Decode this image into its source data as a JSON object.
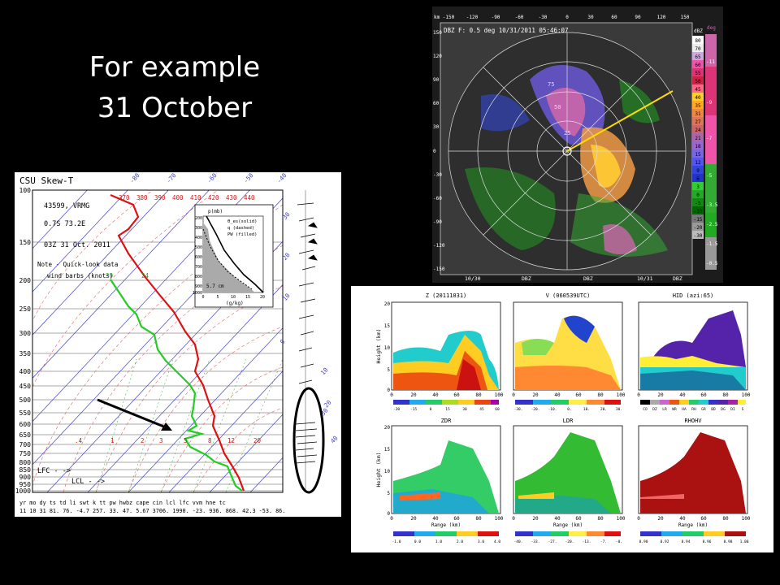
{
  "slide": {
    "title_line1": "For example",
    "title_line2": "31 October"
  },
  "skewt": {
    "header": "CSU Skew-T",
    "station": "43599, VRMG",
    "location": "0.7S   73.2E",
    "time": "03Z 31 Oct. 2011",
    "note_line1": "Note - Quick-look data",
    "note_line2": "wind barbs (knots)",
    "note_30": "30",
    "note_24": "24",
    "pressure_levels": [
      "100",
      "150",
      "200",
      "250",
      "300",
      "350",
      "400",
      "450",
      "500",
      "550",
      "600",
      "650",
      "700",
      "750",
      "800",
      "850",
      "900",
      "950",
      "1000"
    ],
    "top_temps": [
      "370",
      "380",
      "390",
      "400",
      "410",
      "420",
      "430",
      "440"
    ],
    "skew_temps": [
      "-80",
      "-70",
      "-60",
      "-50",
      "-40",
      "-30",
      "-20",
      "-10",
      "0",
      "10",
      "20",
      "30",
      "40"
    ],
    "bottom_temps": [
      ".4",
      "1",
      "2",
      "3",
      "5",
      "8",
      "12",
      "20"
    ],
    "lfc_label": "LFC - ->",
    "lcl_label": "LCL - ->",
    "footer_header": "yr mo dy ts  td  li  swt  k   tt  pw  hwbz  cape  cin  lcl  lfc  vvm  hne  tc",
    "footer_values": "11 10 31 81.  76. -4.7 257.  33.  47. 5.67 3706. 1990.  -23.  936.  868.  42.3 -53.  86.",
    "inset": {
      "ylabel": "p(mb)",
      "legend1": "θ_es(solid)",
      "legend2": "q (dashed)",
      "legend3": "PW (filled)",
      "pw_value": "5.7 cm",
      "xlabel": "(g/kg)",
      "y_ticks": [
        "200",
        "300",
        "400",
        "500",
        "600",
        "700",
        "800",
        "900",
        "1000"
      ],
      "x_ticks": [
        "0",
        "5",
        "10",
        "15",
        "20"
      ]
    }
  },
  "radar": {
    "header": "DBZ F: 0.5 deg 10/31/2011 05:46:07",
    "x_ticks": [
      "-150",
      "-120",
      "-90",
      "-60",
      "-30",
      "0",
      "30",
      "60",
      "90",
      "120",
      "150"
    ],
    "y_ticks": [
      "150",
      "120",
      "90",
      "60",
      "30",
      "0",
      "-30",
      "-60",
      "-90",
      "-120",
      "-150"
    ],
    "km_label": "km",
    "range_labels": [
      "25",
      "50",
      "75"
    ],
    "colorbar_title": "dBZ",
    "colorbar_levels": [
      "80",
      "70",
      "65",
      "60",
      "55",
      "50",
      "45",
      "40",
      "35",
      "31",
      "27",
      "24",
      "21",
      "18",
      "15",
      "12",
      "9",
      "6",
      "3",
      "0",
      "-5",
      "-10",
      "-15",
      "-20",
      "-30"
    ],
    "deg_title": "deg",
    "deg_levels": [
      "-11",
      "-9",
      "-7",
      "-5",
      "-3.5",
      "-2.5",
      "-1.5",
      "-0.5"
    ],
    "footer_left": "10/30",
    "footer_mid1": "DBZ",
    "footer_mid2": "DBZ",
    "footer_right": "10/31",
    "footer_right2": "DBZ"
  },
  "cross": {
    "titles": [
      "Z (20111031)",
      "V (060539UTC)",
      "HID (azi:65)",
      "ZDR",
      "LDR",
      "RHOHV"
    ],
    "ylabel": "Height (km)",
    "xlabel": "Range (km)",
    "y_ticks": [
      "20",
      "15",
      "10",
      "5",
      "0"
    ],
    "x_ticks": [
      "0",
      "20",
      "40",
      "60",
      "80",
      "100"
    ],
    "cb_z": [
      "-30",
      "-15",
      "0",
      "15",
      "30",
      "45",
      "60"
    ],
    "cb_v": [
      "-30.",
      "-20.",
      "-10.",
      "0.",
      "10.",
      "20.",
      "30."
    ],
    "cb_hid": [
      "CO",
      "DZ",
      "LR",
      "WR",
      "HA",
      "RH",
      "GR",
      "BD",
      "DG",
      "DI",
      "S"
    ],
    "cb_zdr": [
      "-1.0",
      "0.0",
      "1.0",
      "2.0",
      "3.0",
      "4.0"
    ],
    "cb_ldr": [
      "-40.",
      "-33.",
      "-27.",
      "-20.",
      "-13.",
      "-7.",
      "-0."
    ],
    "cb_rho": [
      "0.90",
      "0.92",
      "0.94",
      "0.96",
      "0.98",
      "1.00"
    ]
  },
  "colors": {
    "temperature": "#dd1111",
    "dewpoint": "#22cc22",
    "isotherm": "#4444cc",
    "dry_adiabat": "#dd6666",
    "radar_sweep": "#ffdd00"
  }
}
